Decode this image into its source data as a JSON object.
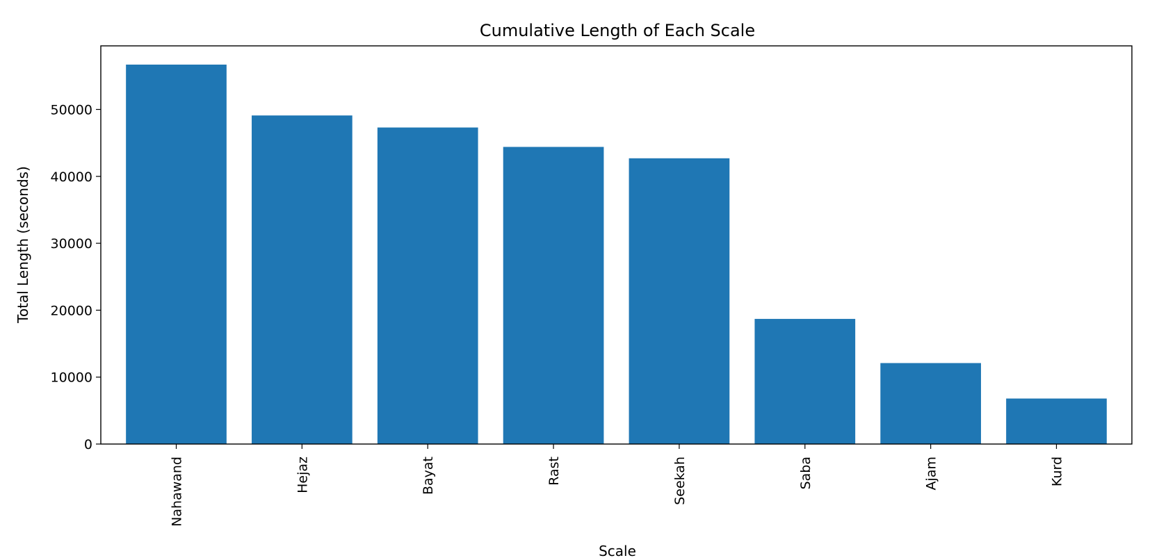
{
  "chart_data": {
    "type": "bar",
    "title": "Cumulative Length of Each Scale",
    "xlabel": "Scale",
    "ylabel": "Total Length (seconds)",
    "categories": [
      "Nahawand",
      "Hejaz",
      "Bayat",
      "Rast",
      "Seekah",
      "Saba",
      "Ajam",
      "Kurd"
    ],
    "values": [
      56700,
      49100,
      47300,
      44400,
      42700,
      18700,
      12100,
      6800
    ],
    "ylim": [
      0,
      59500
    ],
    "yticks": [
      0,
      10000,
      20000,
      30000,
      40000,
      50000
    ],
    "ytick_labels": [
      "0",
      "10000",
      "20000",
      "30000",
      "40000",
      "50000"
    ],
    "bar_color": "#1f77b4",
    "grid": false,
    "legend": false
  }
}
